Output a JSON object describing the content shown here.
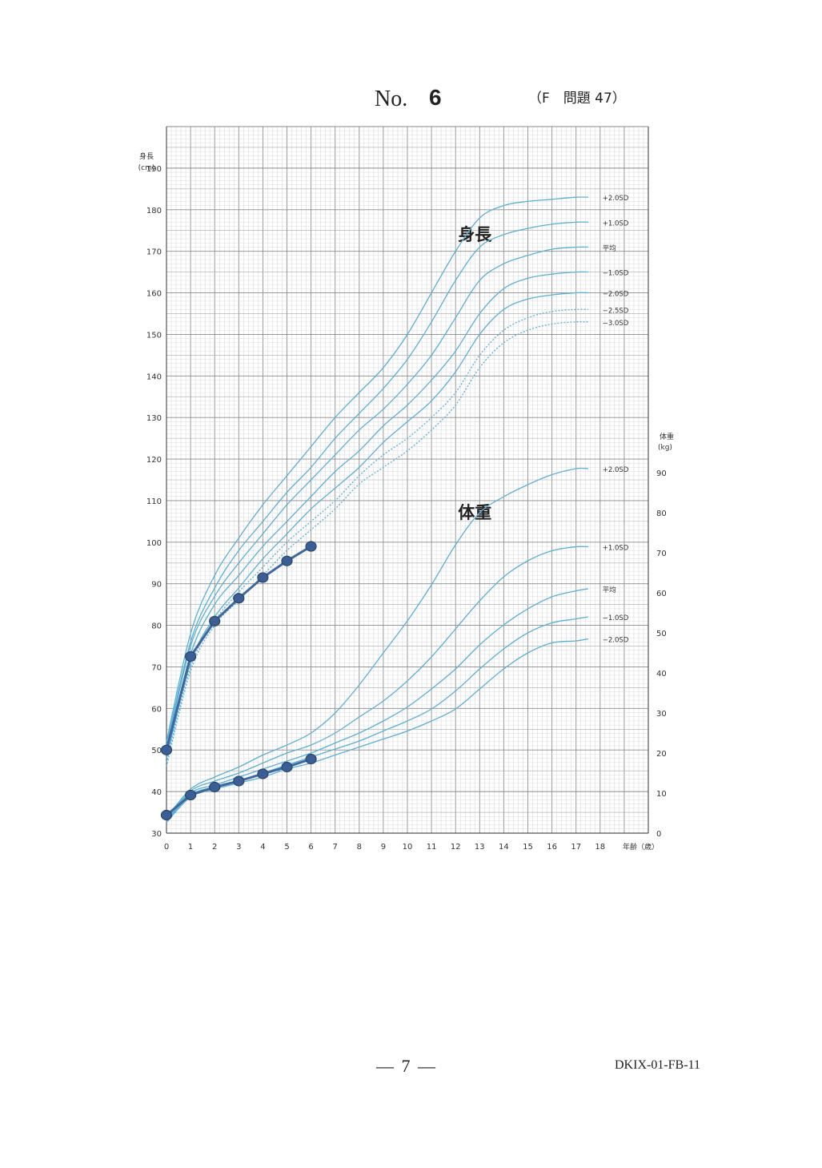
{
  "header": {
    "no_label": "No.",
    "no_value": "6",
    "question": "（F　問題 47）"
  },
  "footer": {
    "page": "— 7 —",
    "code": "DKIX-01-FB-11"
  },
  "chart_data": {
    "type": "line",
    "x_ticks": [
      0,
      1,
      2,
      3,
      4,
      5,
      6,
      7,
      8,
      9,
      10,
      11,
      12,
      13,
      14,
      15,
      16,
      17,
      18
    ],
    "xlabel": "年齢（歳）",
    "ylabel_left": "身長\n(cm)",
    "ylabel_right": "体重\n(kg)",
    "y_left_ticks": [
      30,
      40,
      50,
      60,
      70,
      80,
      90,
      100,
      110,
      120,
      130,
      140,
      150,
      160,
      170,
      180,
      190
    ],
    "y_right_ticks": [
      0,
      10,
      20,
      30,
      40,
      50,
      60,
      70,
      80,
      90
    ],
    "ylim_left": [
      30,
      200
    ],
    "ylim_right": [
      0,
      100
    ],
    "grid": true,
    "height_title": "身長",
    "weight_title": "体重",
    "height_curves": [
      {
        "name": "+2.0SD",
        "dashed": false,
        "x": [
          0,
          1,
          2,
          3,
          4,
          5,
          6,
          7,
          8,
          9,
          10,
          11,
          12,
          13,
          14,
          15,
          16,
          17,
          17.5
        ],
        "y": [
          52,
          78,
          92,
          101,
          109,
          116,
          123,
          130,
          136,
          142,
          150,
          160,
          170,
          178,
          181,
          182,
          182.5,
          183,
          183
        ]
      },
      {
        "name": "+1.0SD",
        "dashed": false,
        "x": [
          0,
          1,
          2,
          3,
          4,
          5,
          6,
          7,
          8,
          9,
          10,
          11,
          12,
          13,
          14,
          15,
          16,
          17,
          17.5
        ],
        "y": [
          51,
          76,
          89,
          98,
          105,
          112,
          118,
          125,
          131,
          137,
          144,
          153,
          163,
          171,
          174,
          175.5,
          176.5,
          177,
          177
        ]
      },
      {
        "name": "平均",
        "dashed": false,
        "x": [
          0,
          1,
          2,
          3,
          4,
          5,
          6,
          7,
          8,
          9,
          10,
          11,
          12,
          13,
          14,
          15,
          16,
          17,
          17.5
        ],
        "y": [
          50,
          75,
          87,
          95,
          102,
          109,
          115,
          121,
          127,
          132,
          138,
          145,
          154,
          163,
          167,
          169,
          170.5,
          171,
          171
        ]
      },
      {
        "name": "−1.0SD",
        "dashed": false,
        "x": [
          0,
          1,
          2,
          3,
          4,
          5,
          6,
          7,
          8,
          9,
          10,
          11,
          12,
          13,
          14,
          15,
          16,
          17,
          17.5
        ],
        "y": [
          49,
          73,
          85,
          92,
          99,
          105,
          111,
          117,
          122,
          128,
          133,
          139,
          146,
          155,
          161,
          163.5,
          164.5,
          165,
          165
        ]
      },
      {
        "name": "−2.0SD",
        "dashed": false,
        "x": [
          0,
          1,
          2,
          3,
          4,
          5,
          6,
          7,
          8,
          9,
          10,
          11,
          12,
          13,
          14,
          15,
          16,
          17,
          17.5
        ],
        "y": [
          48,
          71,
          82,
          89,
          96,
          102,
          108,
          113,
          118,
          124,
          129,
          134,
          141,
          150,
          156,
          158.5,
          159.5,
          160,
          160
        ]
      },
      {
        "name": "−2.5SD",
        "dashed": true,
        "x": [
          0,
          1,
          2,
          3,
          4,
          5,
          6,
          7,
          8,
          9,
          10,
          11,
          12,
          13,
          14,
          15,
          16,
          17,
          17.5
        ],
        "y": [
          47,
          70,
          81,
          88,
          94,
          100,
          105,
          110,
          116,
          121,
          125,
          130,
          136,
          145,
          151,
          154,
          155.5,
          156,
          156
        ]
      },
      {
        "name": "−3.0SD",
        "dashed": true,
        "x": [
          0,
          1,
          2,
          3,
          4,
          5,
          6,
          7,
          8,
          9,
          10,
          11,
          12,
          13,
          14,
          15,
          16,
          17,
          17.5
        ],
        "y": [
          46,
          69,
          80,
          86,
          92,
          98,
          103,
          108,
          114,
          118,
          122,
          127,
          133,
          142,
          148,
          151,
          152.5,
          153,
          153
        ]
      }
    ],
    "weight_curves": [
      {
        "name": "+2.0SD",
        "x": [
          0,
          1,
          2,
          3,
          4,
          5,
          6,
          7,
          8,
          9,
          10,
          11,
          12,
          13,
          14,
          15,
          16,
          17,
          17.5
        ],
        "y": [
          3.8,
          11,
          14,
          16.5,
          19.5,
          22,
          25,
          30,
          37,
          45,
          53,
          62,
          72,
          80,
          84,
          87,
          89.5,
          91,
          91
        ]
      },
      {
        "name": "+1.0SD",
        "x": [
          0,
          1,
          2,
          3,
          4,
          5,
          6,
          7,
          8,
          9,
          10,
          11,
          12,
          13,
          14,
          15,
          16,
          17,
          17.5
        ],
        "y": [
          3.4,
          10.5,
          13,
          15,
          17.5,
          20,
          22,
          25,
          29,
          33,
          38,
          44,
          51,
          58,
          64,
          68,
          70.5,
          71.5,
          71.5
        ]
      },
      {
        "name": "平均",
        "x": [
          0,
          1,
          2,
          3,
          4,
          5,
          6,
          7,
          8,
          9,
          10,
          11,
          12,
          13,
          14,
          15,
          16,
          17,
          17.5
        ],
        "y": [
          3.1,
          10,
          12,
          14,
          16,
          18,
          20,
          22.5,
          25,
          28,
          31.5,
          36,
          41,
          47,
          52,
          56,
          59,
          60.5,
          61
        ]
      },
      {
        "name": "−1.0SD",
        "x": [
          0,
          1,
          2,
          3,
          4,
          5,
          6,
          7,
          8,
          9,
          10,
          11,
          12,
          13,
          14,
          15,
          16,
          17,
          17.5
        ],
        "y": [
          2.9,
          9.5,
          11.5,
          13,
          15,
          17,
          19,
          21,
          23,
          25.5,
          28,
          31,
          35.5,
          41,
          46,
          50,
          52.5,
          53.5,
          54
        ]
      },
      {
        "name": "−2.0SD",
        "x": [
          0,
          1,
          2,
          3,
          4,
          5,
          6,
          7,
          8,
          9,
          10,
          11,
          12,
          13,
          14,
          15,
          16,
          17,
          17.5
        ],
        "y": [
          2.7,
          9,
          11,
          12.5,
          14,
          16,
          17.5,
          19.5,
          21.5,
          23.5,
          25.5,
          28,
          31,
          36,
          41,
          45,
          47.5,
          48,
          48.5
        ]
      }
    ],
    "patient_height": {
      "x": [
        0,
        1,
        2,
        3,
        4,
        5,
        6
      ],
      "y": [
        50,
        72.5,
        81,
        86.5,
        91.5,
        95.5,
        99
      ]
    },
    "patient_weight": {
      "x": [
        0,
        1,
        2,
        3,
        4,
        5,
        6
      ],
      "y": [
        4.5,
        9.5,
        11.5,
        13,
        14.8,
        16.5,
        18.5
      ]
    }
  }
}
